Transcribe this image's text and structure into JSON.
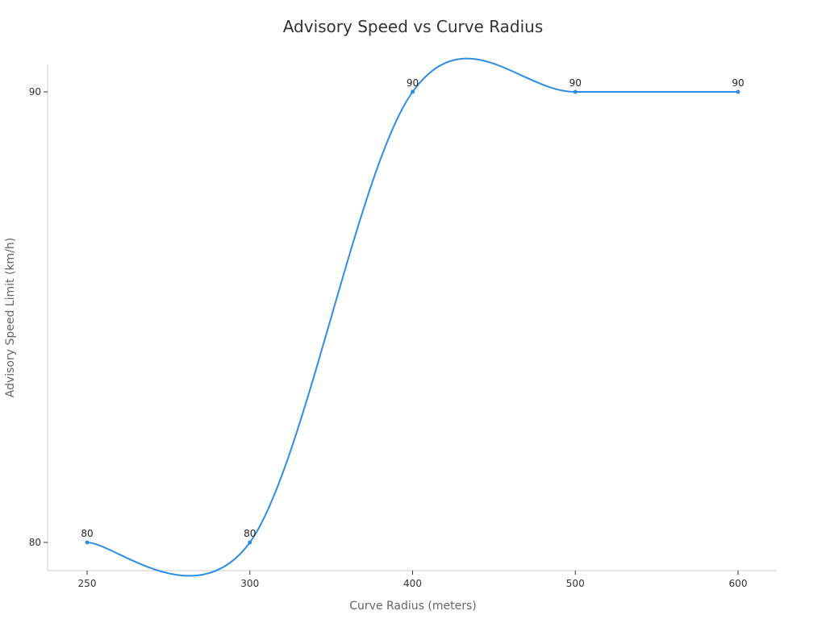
{
  "chart_data": {
    "type": "line",
    "title": "Advisory Speed vs Curve Radius",
    "xlabel": "Curve Radius (meters)",
    "ylabel": "Advisory Speed Limit (km/h)",
    "categories": [
      "250",
      "300",
      "400",
      "500",
      "600"
    ],
    "series": [
      {
        "values": [
          80,
          80,
          90,
          90,
          90
        ],
        "color": "#2f8de4"
      }
    ],
    "ylim": [
      80,
      90
    ],
    "yticks": [
      "80",
      "90"
    ],
    "smooth": true,
    "markers": true,
    "data_labels": true,
    "grid": false,
    "legend": "none"
  }
}
